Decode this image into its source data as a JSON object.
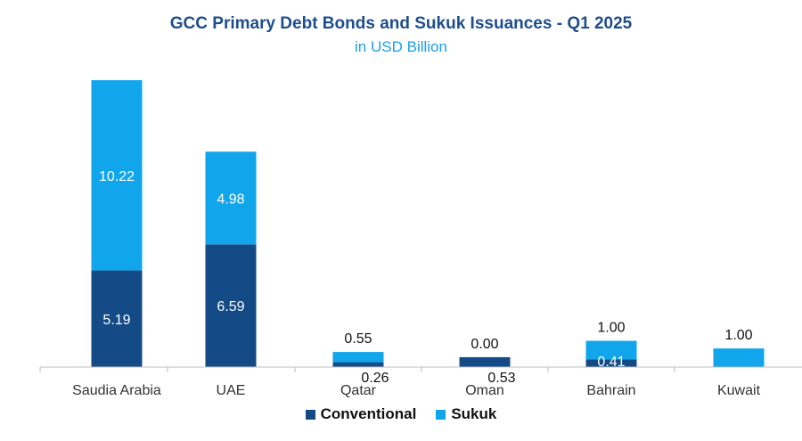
{
  "chart_data": {
    "type": "bar",
    "stacked": true,
    "title": "GCC Primary Debt Bonds and Sukuk Issuances - Q1 2025",
    "subtitle": "in USD Billion",
    "categories": [
      "Saudia Arabia",
      "UAE",
      "Qatar",
      "Oman",
      "Bahrain",
      "Kuwait"
    ],
    "series": [
      {
        "name": "Conventional",
        "color": "#144b87",
        "values": [
          5.19,
          6.59,
          0.26,
          0.53,
          0.41,
          0.0
        ],
        "labels": [
          "5.19",
          "6.59",
          "0.26",
          "0.53",
          "0.41",
          ""
        ]
      },
      {
        "name": "Sukuk",
        "color": "#11a6ec",
        "values": [
          10.22,
          4.98,
          0.55,
          0.0,
          1.0,
          1.0
        ],
        "labels": [
          "10.22",
          "4.98",
          "0.55",
          "0.00",
          "1.00",
          "1.00"
        ]
      }
    ],
    "ylim": [
      0,
      16
    ],
    "grid": false,
    "legend_position": "bottom"
  }
}
